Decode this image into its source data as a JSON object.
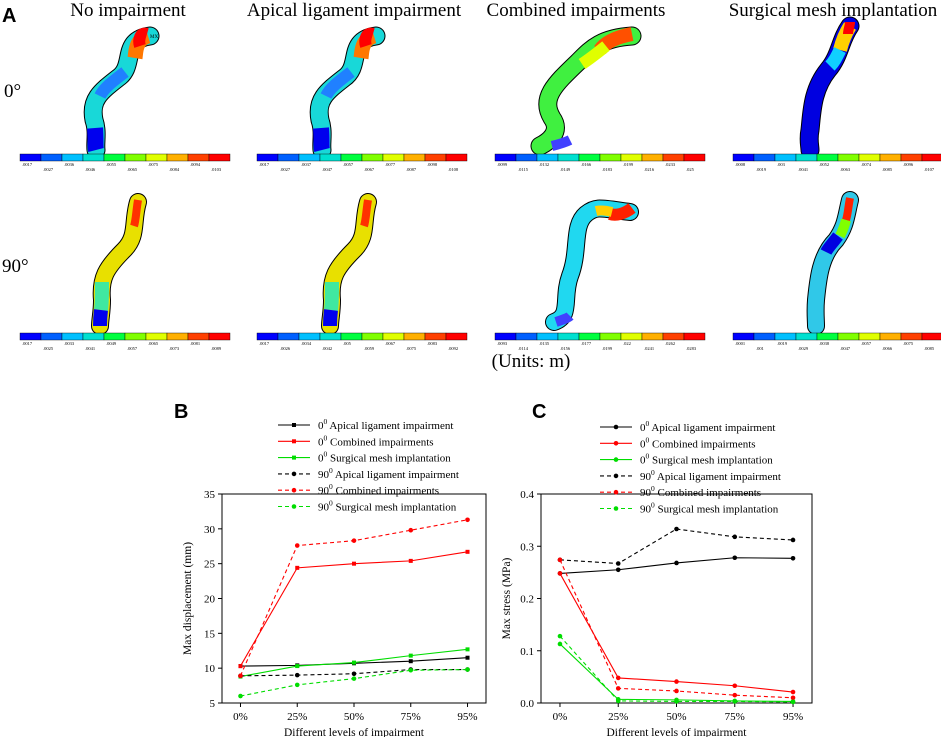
{
  "panel_a": {
    "letter": "A",
    "column_titles": [
      "No impairment",
      "Apical ligament impairment",
      "Combined impairments",
      "Surgical mesh implantation"
    ],
    "row_labels": [
      "0°",
      "90°"
    ],
    "units_caption": "(Units: m)",
    "colors": [
      "#0000ff",
      "#0060ff",
      "#00c0ff",
      "#00e0d0",
      "#00ff40",
      "#80ff00",
      "#e0ff00",
      "#ffb000",
      "#ff4000",
      "#ff0000"
    ],
    "legend_ticks": {
      "row0": [
        [
          ".0017",
          ".0027",
          ".0036",
          ".0046",
          ".0055",
          ".0065",
          ".0075",
          ".0084",
          ".0094",
          ".0103"
        ],
        [
          ".0017",
          ".0027",
          ".0037",
          ".0047",
          ".0057",
          ".0067",
          ".0077",
          ".0087",
          ".0098",
          ".0108"
        ],
        [
          ".0099",
          ".0115",
          ".0132",
          ".0149",
          ".0166",
          ".0183",
          ".0199",
          ".0216",
          ".0233",
          ".025"
        ],
        [
          ".0008",
          ".0019",
          ".003",
          ".0041",
          ".0052",
          ".0063",
          ".0074",
          ".0085",
          ".0096",
          ".0107"
        ]
      ],
      "row1": [
        [
          ".0017",
          ".0025",
          ".0033",
          ".0041",
          ".0049",
          ".0057",
          ".0065",
          ".0073",
          ".0081",
          ".0089"
        ],
        [
          ".0017",
          ".0026",
          ".0034",
          ".0042",
          ".005",
          ".0059",
          ".0067",
          ".0075",
          ".0083",
          ".0092"
        ],
        [
          ".0093",
          ".0114",
          ".0135",
          ".0156",
          ".0177",
          ".0199",
          ".022",
          ".0241",
          ".0262",
          ".0283"
        ],
        [
          ".0001",
          ".001",
          ".0019",
          ".0029",
          ".0038",
          ".0047",
          ".0057",
          ".0066",
          ".0075",
          ".0085"
        ]
      ]
    }
  },
  "chart_data": [
    {
      "panel": "B",
      "type": "line",
      "categories": [
        "0%",
        "25%",
        "50%",
        "75%",
        "95%"
      ],
      "xlabel": "Different levels of impairment",
      "ylabel": "Max displacement (mm)",
      "ylim": [
        5,
        35
      ],
      "yticks": [
        "5",
        "10",
        "15",
        "20",
        "25",
        "30",
        "35"
      ],
      "legend_position": "top",
      "series": [
        {
          "prefix": "0",
          "sup": "0",
          "name": "Apical ligament impairment",
          "color": "#000000",
          "dashed": false,
          "marker": "square",
          "values": [
            10.3,
            10.4,
            10.7,
            11.0,
            11.5
          ]
        },
        {
          "prefix": "0",
          "sup": "0",
          "name": "Combined impairments",
          "color": "#ff0000",
          "dashed": false,
          "marker": "square",
          "values": [
            10.3,
            24.4,
            25.0,
            25.4,
            26.7
          ]
        },
        {
          "prefix": "0",
          "sup": "0",
          "name": "Surgical mesh implantation",
          "color": "#00dd00",
          "dashed": false,
          "marker": "square",
          "values": [
            8.8,
            10.3,
            10.8,
            11.8,
            12.7
          ]
        },
        {
          "prefix": "90",
          "sup": "0",
          "name": "Apical ligament impairment",
          "color": "#000000",
          "dashed": true,
          "marker": "circle",
          "values": [
            8.9,
            9.0,
            9.2,
            9.8,
            9.8
          ]
        },
        {
          "prefix": "90",
          "sup": "0",
          "name": "Combined impairments",
          "color": "#ff0000",
          "dashed": true,
          "marker": "circle",
          "values": [
            8.9,
            27.6,
            28.3,
            29.8,
            31.3
          ]
        },
        {
          "prefix": "90",
          "sup": "0",
          "name": "Surgical mesh implantation",
          "color": "#00dd00",
          "dashed": true,
          "marker": "circle",
          "values": [
            6.0,
            7.6,
            8.5,
            9.7,
            9.8
          ]
        }
      ]
    },
    {
      "panel": "C",
      "type": "line",
      "categories": [
        "0%",
        "25%",
        "50%",
        "75%",
        "95%"
      ],
      "xlabel": "Different levels of impairment",
      "ylabel": "Max stress (MPa)",
      "ylim": [
        0.0,
        0.4
      ],
      "yticks": [
        "0.0",
        "0.1",
        "0.2",
        "0.3",
        "0.4"
      ],
      "legend_position": "top",
      "series": [
        {
          "prefix": "0",
          "sup": "0",
          "name": "Apical ligament impairment",
          "color": "#000000",
          "dashed": false,
          "marker": "circle",
          "values": [
            0.248,
            0.255,
            0.268,
            0.278,
            0.277
          ]
        },
        {
          "prefix": "0",
          "sup": "0",
          "name": "Combined impairments",
          "color": "#ff0000",
          "dashed": false,
          "marker": "circle",
          "values": [
            0.248,
            0.048,
            0.041,
            0.033,
            0.021
          ]
        },
        {
          "prefix": "0",
          "sup": "0",
          "name": "Surgical mesh implantation",
          "color": "#00dd00",
          "dashed": false,
          "marker": "circle",
          "values": [
            0.113,
            0.007,
            0.006,
            0.004,
            0.003
          ]
        },
        {
          "prefix": "90",
          "sup": "0",
          "name": "Apical ligament impairment",
          "color": "#000000",
          "dashed": true,
          "marker": "circle",
          "values": [
            0.274,
            0.267,
            0.333,
            0.318,
            0.312
          ]
        },
        {
          "prefix": "90",
          "sup": "0",
          "name": "Combined impairments",
          "color": "#ff0000",
          "dashed": true,
          "marker": "circle",
          "values": [
            0.274,
            0.028,
            0.023,
            0.015,
            0.01
          ]
        },
        {
          "prefix": "90",
          "sup": "0",
          "name": "Surgical mesh implantation",
          "color": "#00dd00",
          "dashed": true,
          "marker": "circle",
          "values": [
            0.128,
            0.004,
            0.003,
            0.003,
            0.002
          ]
        }
      ]
    }
  ]
}
